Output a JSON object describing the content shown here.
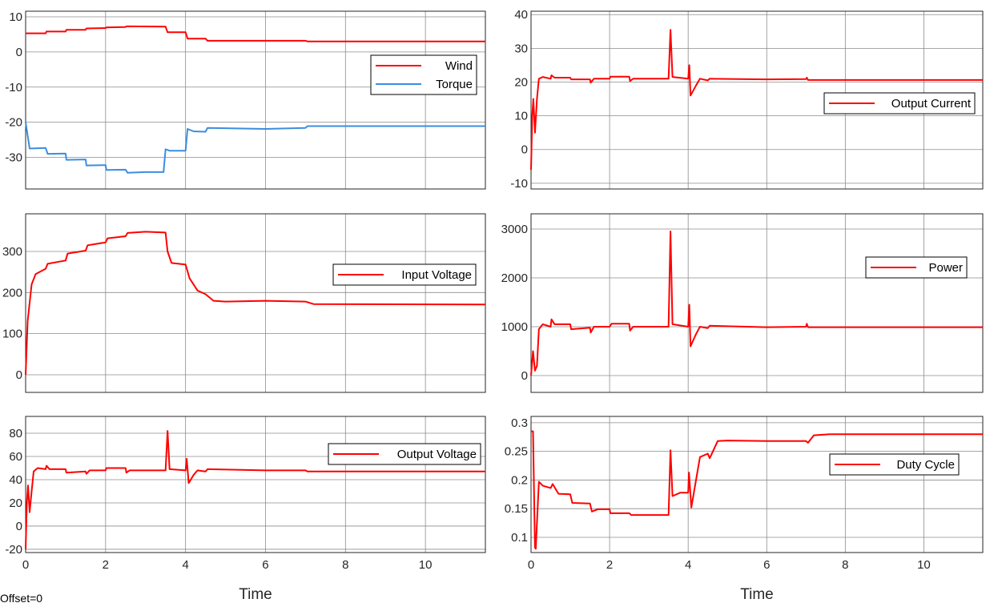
{
  "offset_label": "Offset=0",
  "colors": {
    "red": "#ff0000",
    "blue": "#3a8ee0",
    "grid": "#8c8c8c"
  },
  "chart_data": [
    {
      "type": "line",
      "title": "",
      "xlabel": "",
      "xlim": [
        0,
        11.5
      ],
      "ylim": [
        -39,
        11.6
      ],
      "xticks": [
        0,
        2,
        4,
        6,
        8,
        10
      ],
      "yticks": [
        -30,
        -20,
        -10,
        0,
        10
      ],
      "grid": true,
      "legend": "right",
      "series": [
        {
          "name": "Wind",
          "color": "#ff0000",
          "points": [
            [
              0,
              5.3
            ],
            [
              0.5,
              5.3
            ],
            [
              0.52,
              5.8
            ],
            [
              1,
              5.8
            ],
            [
              1.02,
              6.3
            ],
            [
              1.5,
              6.3
            ],
            [
              1.52,
              6.7
            ],
            [
              2,
              6.8
            ],
            [
              2.02,
              7
            ],
            [
              2.5,
              7.1
            ],
            [
              2.52,
              7.3
            ],
            [
              3.5,
              7.2
            ],
            [
              3.55,
              5.6
            ],
            [
              4,
              5.6
            ],
            [
              4.05,
              3.8
            ],
            [
              4.5,
              3.8
            ],
            [
              4.55,
              3.2
            ],
            [
              7,
              3.2
            ],
            [
              7.05,
              3
            ],
            [
              11.5,
              3
            ]
          ]
        },
        {
          "name": "Torque",
          "color": "#3a8ee0",
          "points": [
            [
              0,
              -20
            ],
            [
              0.1,
              -27.5
            ],
            [
              0.5,
              -27.3
            ],
            [
              0.55,
              -29
            ],
            [
              1,
              -28.9
            ],
            [
              1.02,
              -30.7
            ],
            [
              1.5,
              -30.6
            ],
            [
              1.52,
              -32.3
            ],
            [
              2,
              -32.2
            ],
            [
              2.02,
              -33.6
            ],
            [
              2.5,
              -33.5
            ],
            [
              2.55,
              -34.4
            ],
            [
              3,
              -34.2
            ],
            [
              3.45,
              -34.2
            ],
            [
              3.5,
              -27.7
            ],
            [
              3.6,
              -28.1
            ],
            [
              4,
              -28.1
            ],
            [
              4.05,
              -21.9
            ],
            [
              4.2,
              -22.6
            ],
            [
              4.5,
              -22.7
            ],
            [
              4.55,
              -21.6
            ],
            [
              6,
              -21.9
            ],
            [
              7,
              -21.6
            ],
            [
              7.05,
              -21.1
            ],
            [
              11.5,
              -21.1
            ]
          ]
        }
      ]
    },
    {
      "type": "line",
      "title": "",
      "xlabel": "",
      "xlim": [
        0,
        11.5
      ],
      "ylim": [
        -11.7,
        41
      ],
      "xticks": [
        0,
        2,
        4,
        6,
        8,
        10
      ],
      "yticks": [
        -10,
        0,
        10,
        20,
        30,
        40
      ],
      "grid": true,
      "legend": "right",
      "series": [
        {
          "name": "Output Current",
          "color": "#ff0000",
          "points": [
            [
              0,
              -6
            ],
            [
              0.03,
              10
            ],
            [
              0.06,
              15
            ],
            [
              0.1,
              5
            ],
            [
              0.15,
              15
            ],
            [
              0.2,
              21
            ],
            [
              0.3,
              21.5
            ],
            [
              0.5,
              21
            ],
            [
              0.52,
              22
            ],
            [
              0.6,
              21.3
            ],
            [
              1,
              21.3
            ],
            [
              1.02,
              20.8
            ],
            [
              1.5,
              20.8
            ],
            [
              1.52,
              19.8
            ],
            [
              1.6,
              21
            ],
            [
              2,
              21
            ],
            [
              2.02,
              21.6
            ],
            [
              2.5,
              21.6
            ],
            [
              2.52,
              20.3
            ],
            [
              2.6,
              21
            ],
            [
              3.5,
              21
            ],
            [
              3.55,
              35.5
            ],
            [
              3.6,
              21.5
            ],
            [
              4,
              21
            ],
            [
              4.03,
              25
            ],
            [
              4.06,
              16
            ],
            [
              4.2,
              19
            ],
            [
              4.3,
              21
            ],
            [
              4.5,
              20.5
            ],
            [
              4.55,
              21
            ],
            [
              6,
              20.8
            ],
            [
              7,
              20.9
            ],
            [
              7.02,
              21.3
            ],
            [
              7.05,
              20.6
            ],
            [
              11.5,
              20.6
            ]
          ]
        }
      ]
    },
    {
      "type": "line",
      "title": "",
      "xlabel": "",
      "xlim": [
        0,
        11.5
      ],
      "ylim": [
        -42.9,
        391.6
      ],
      "xticks": [
        0,
        2,
        4,
        6,
        8,
        10
      ],
      "yticks": [
        0,
        100,
        200,
        300
      ],
      "grid": true,
      "legend": "right",
      "series": [
        {
          "name": "Input Voltage",
          "color": "#ff0000",
          "points": [
            [
              0,
              0
            ],
            [
              0.05,
              130
            ],
            [
              0.15,
              220
            ],
            [
              0.25,
              245
            ],
            [
              0.5,
              258
            ],
            [
              0.55,
              270
            ],
            [
              1,
              278
            ],
            [
              1.05,
              295
            ],
            [
              1.5,
              302
            ],
            [
              1.55,
              315
            ],
            [
              2,
              322
            ],
            [
              2.05,
              332
            ],
            [
              2.5,
              337
            ],
            [
              2.55,
              345
            ],
            [
              3,
              348
            ],
            [
              3.5,
              346
            ],
            [
              3.55,
              300
            ],
            [
              3.65,
              272
            ],
            [
              4,
              268
            ],
            [
              4.1,
              235
            ],
            [
              4.3,
              205
            ],
            [
              4.5,
              196
            ],
            [
              4.7,
              180
            ],
            [
              5,
              178
            ],
            [
              6,
              180
            ],
            [
              7,
              178
            ],
            [
              7.2,
              172
            ],
            [
              11.5,
              171
            ]
          ]
        }
      ]
    },
    {
      "type": "line",
      "title": "",
      "xlabel": "",
      "xlim": [
        0,
        11.5
      ],
      "ylim": [
        -344,
        3311
      ],
      "xticks": [
        0,
        2,
        4,
        6,
        8,
        10
      ],
      "yticks": [
        0,
        1000,
        2000,
        3000
      ],
      "grid": true,
      "legend": "right",
      "series": [
        {
          "name": "Power",
          "color": "#ff0000",
          "points": [
            [
              0,
              0
            ],
            [
              0.05,
              500
            ],
            [
              0.1,
              100
            ],
            [
              0.15,
              200
            ],
            [
              0.2,
              950
            ],
            [
              0.3,
              1050
            ],
            [
              0.5,
              1000
            ],
            [
              0.52,
              1150
            ],
            [
              0.6,
              1050
            ],
            [
              1,
              1050
            ],
            [
              1.02,
              950
            ],
            [
              1.5,
              980
            ],
            [
              1.52,
              880
            ],
            [
              1.6,
              1000
            ],
            [
              2,
              1000
            ],
            [
              2.05,
              1060
            ],
            [
              2.5,
              1060
            ],
            [
              2.52,
              920
            ],
            [
              2.6,
              1000
            ],
            [
              3.5,
              1000
            ],
            [
              3.55,
              2950
            ],
            [
              3.6,
              1050
            ],
            [
              4,
              1000
            ],
            [
              4.03,
              1450
            ],
            [
              4.06,
              600
            ],
            [
              4.2,
              850
            ],
            [
              4.3,
              1000
            ],
            [
              4.5,
              970
            ],
            [
              4.55,
              1020
            ],
            [
              6,
              990
            ],
            [
              7,
              1000
            ],
            [
              7.02,
              1060
            ],
            [
              7.05,
              990
            ],
            [
              11.5,
              990
            ]
          ]
        }
      ]
    },
    {
      "type": "line",
      "title": "",
      "xlabel": "Time",
      "xlim": [
        0,
        11.5
      ],
      "ylim": [
        -22.8,
        94.5
      ],
      "xticks": [
        0,
        2,
        4,
        6,
        8,
        10
      ],
      "yticks": [
        -20,
        0,
        20,
        40,
        60,
        80
      ],
      "grid": true,
      "legend": "right",
      "series": [
        {
          "name": "Output Voltage",
          "color": "#ff0000",
          "points": [
            [
              0,
              -20
            ],
            [
              0.03,
              20
            ],
            [
              0.06,
              35
            ],
            [
              0.1,
              12
            ],
            [
              0.15,
              30
            ],
            [
              0.2,
              47
            ],
            [
              0.3,
              50
            ],
            [
              0.5,
              49
            ],
            [
              0.52,
              52
            ],
            [
              0.6,
              49
            ],
            [
              1,
              49
            ],
            [
              1.02,
              46
            ],
            [
              1.5,
              47
            ],
            [
              1.52,
              45
            ],
            [
              1.6,
              48
            ],
            [
              2,
              48
            ],
            [
              2.02,
              50
            ],
            [
              2.5,
              50
            ],
            [
              2.52,
              46
            ],
            [
              2.6,
              48
            ],
            [
              3.5,
              48
            ],
            [
              3.55,
              82
            ],
            [
              3.6,
              49
            ],
            [
              4,
              48
            ],
            [
              4.03,
              58
            ],
            [
              4.08,
              37
            ],
            [
              4.2,
              44
            ],
            [
              4.3,
              48
            ],
            [
              4.5,
              47
            ],
            [
              4.55,
              49
            ],
            [
              6,
              48
            ],
            [
              7,
              48
            ],
            [
              7.05,
              47
            ],
            [
              11.5,
              47
            ]
          ]
        }
      ]
    },
    {
      "type": "line",
      "title": "",
      "xlabel": "Time",
      "xlim": [
        0,
        11.5
      ],
      "ylim": [
        0.0734,
        0.311
      ],
      "xticks": [
        0,
        2,
        4,
        6,
        8,
        10
      ],
      "yticks": [
        0.1,
        0.15,
        0.2,
        0.25,
        0.3
      ],
      "grid": true,
      "legend": "right",
      "series": [
        {
          "name": "Duty Cycle",
          "color": "#ff0000",
          "points": [
            [
              0,
              0.285
            ],
            [
              0.05,
              0.285
            ],
            [
              0.1,
              0.082
            ],
            [
              0.12,
              0.08
            ],
            [
              0.2,
              0.197
            ],
            [
              0.3,
              0.19
            ],
            [
              0.5,
              0.186
            ],
            [
              0.55,
              0.193
            ],
            [
              0.7,
              0.176
            ],
            [
              1,
              0.175
            ],
            [
              1.05,
              0.16
            ],
            [
              1.5,
              0.159
            ],
            [
              1.55,
              0.145
            ],
            [
              1.7,
              0.149
            ],
            [
              2,
              0.149
            ],
            [
              2.02,
              0.142
            ],
            [
              2.5,
              0.142
            ],
            [
              2.55,
              0.139
            ],
            [
              3,
              0.139
            ],
            [
              3.5,
              0.139
            ],
            [
              3.55,
              0.252
            ],
            [
              3.6,
              0.172
            ],
            [
              3.8,
              0.178
            ],
            [
              4,
              0.178
            ],
            [
              4.02,
              0.213
            ],
            [
              4.08,
              0.152
            ],
            [
              4.3,
              0.24
            ],
            [
              4.5,
              0.246
            ],
            [
              4.55,
              0.238
            ],
            [
              4.75,
              0.268
            ],
            [
              5,
              0.269
            ],
            [
              6,
              0.268
            ],
            [
              7,
              0.268
            ],
            [
              7.05,
              0.265
            ],
            [
              7.2,
              0.278
            ],
            [
              7.6,
              0.28
            ],
            [
              11.5,
              0.28
            ]
          ]
        }
      ]
    }
  ]
}
